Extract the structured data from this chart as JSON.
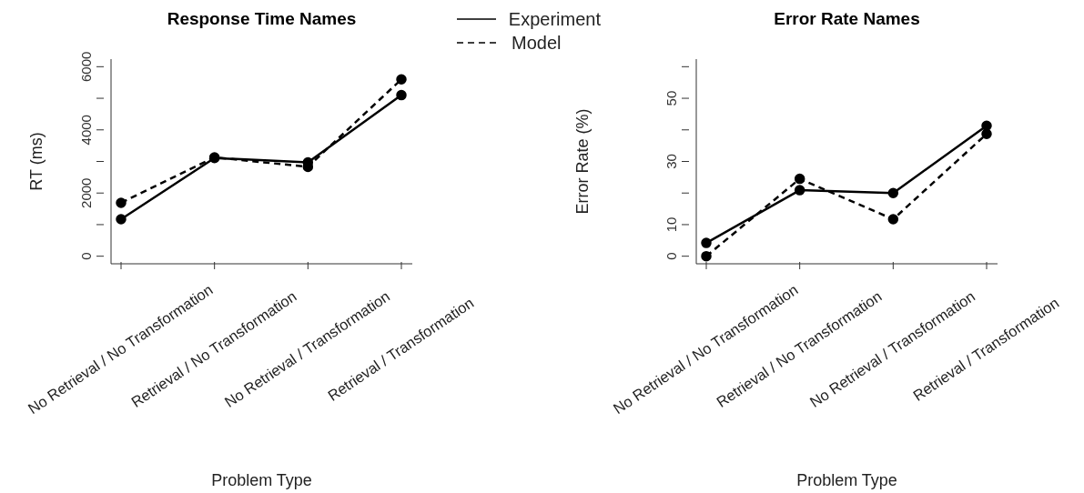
{
  "chart_data": [
    {
      "type": "line",
      "title": "Response Time Names",
      "xlabel": "Problem Type",
      "ylabel": "RT (ms)",
      "categories": [
        "No Retrieval / No Transformation",
        "Retrieval / No Transformation",
        "No Retrieval / Transformation",
        "Retrieval / Transformation"
      ],
      "series": [
        {
          "name": "Experiment",
          "color": "#000000",
          "line_style": "solid",
          "values": [
            1170,
            3110,
            2970,
            5100
          ]
        },
        {
          "name": "Model",
          "color": "#000000",
          "line_style": "dashed",
          "values": [
            1690,
            3130,
            2830,
            5600
          ]
        }
      ],
      "ylim": [
        -240,
        6240
      ],
      "yticks": [
        0,
        {
          "value": 1000,
          "label": null
        },
        2000,
        {
          "value": 3000,
          "label": null
        },
        4000,
        {
          "value": 5000,
          "label": null
        },
        6000
      ],
      "marker": "circle",
      "legend": "top right"
    },
    {
      "type": "line",
      "title": "Error Rate Names",
      "xlabel": "Problem Type",
      "ylabel": "Error Rate (%)",
      "categories": [
        "No Retrieval / No Transformation",
        "Retrieval / No Transformation",
        "No Retrieval / Transformation",
        "Retrieval / Transformation"
      ],
      "series": [
        {
          "color": "#000000",
          "line_style": "solid",
          "values": [
            4.2,
            20.9,
            20.0,
            41.3
          ]
        },
        {
          "color": "#000000",
          "line_style": "dashed",
          "values": [
            0,
            24.5,
            11.7,
            38.7
          ]
        }
      ],
      "ylim": [
        -2.4,
        62.4
      ],
      "yticks": [
        0,
        10,
        {
          "value": 20,
          "label": null
        },
        30,
        {
          "value": 40,
          "label": null
        },
        50,
        {
          "value": 60,
          "label": null
        }
      ],
      "marker": "circle"
    }
  ]
}
